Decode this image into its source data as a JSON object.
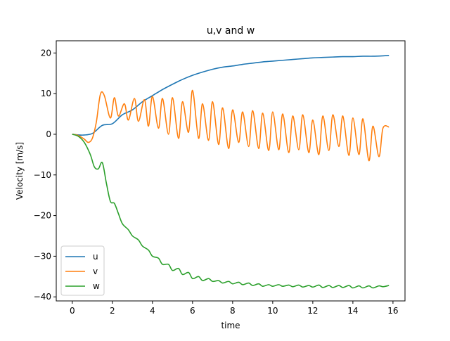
{
  "chart_data": {
    "type": "line",
    "title": "u,v and w",
    "xlabel": "time",
    "ylabel": "Velocity [m/s]",
    "xlim": [
      -0.8,
      16.6
    ],
    "ylim": [
      -41,
      23
    ],
    "xticks": [
      0,
      2,
      4,
      6,
      8,
      10,
      12,
      14,
      16
    ],
    "xtick_labels": [
      "0",
      "2",
      "4",
      "6",
      "8",
      "10",
      "12",
      "14",
      "16"
    ],
    "yticks": [
      -40,
      -30,
      -20,
      -10,
      0,
      10,
      20
    ],
    "ytick_labels": [
      "−40",
      "−30",
      "−20",
      "−10",
      "0",
      "10",
      "20"
    ],
    "grid": false,
    "legend_position": "lower-left",
    "series": [
      {
        "name": "u",
        "color": "#1f77b4",
        "x": [
          0,
          0.5,
          1.0,
          1.5,
          2.0,
          2.5,
          3.0,
          3.5,
          4.0,
          4.5,
          5.0,
          5.5,
          6.0,
          6.5,
          7.0,
          7.5,
          8.0,
          8.5,
          9.0,
          9.5,
          10.0,
          10.5,
          11.0,
          11.5,
          12.0,
          12.5,
          13.0,
          13.5,
          14.0,
          14.5,
          15.0,
          15.5,
          15.8
        ],
        "y": [
          0,
          -0.2,
          0.2,
          2.2,
          2.6,
          4.8,
          6.0,
          8.0,
          9.5,
          11.0,
          12.3,
          13.5,
          14.5,
          15.3,
          16.0,
          16.5,
          16.8,
          17.2,
          17.5,
          17.8,
          18.0,
          18.2,
          18.4,
          18.6,
          18.8,
          18.9,
          19.0,
          19.1,
          19.1,
          19.2,
          19.2,
          19.3,
          19.4
        ]
      },
      {
        "name": "v",
        "color": "#ff7f0e",
        "x": [
          0,
          0.3,
          0.6,
          0.8,
          1.0,
          1.2,
          1.4,
          1.6,
          1.9,
          2.1,
          2.3,
          2.6,
          2.8,
          3.1,
          3.3,
          3.6,
          3.8,
          4.0,
          4.3,
          4.5,
          4.8,
          5.0,
          5.3,
          5.5,
          5.8,
          6.0,
          6.3,
          6.5,
          6.8,
          7.0,
          7.3,
          7.5,
          7.8,
          8.0,
          8.3,
          8.5,
          8.8,
          9.0,
          9.3,
          9.5,
          9.8,
          10.0,
          10.3,
          10.5,
          10.8,
          11.0,
          11.3,
          11.5,
          11.8,
          12.0,
          12.3,
          12.5,
          12.8,
          13.0,
          13.3,
          13.5,
          13.8,
          14.0,
          14.3,
          14.5,
          14.8,
          15.0,
          15.3,
          15.5,
          15.8
        ],
        "y": [
          0,
          -0.3,
          -1.2,
          -2.0,
          -1.0,
          3.0,
          9.8,
          9.5,
          4.0,
          9.0,
          4.5,
          7.5,
          3.5,
          8.8,
          3.2,
          8.5,
          2.0,
          9.3,
          1.5,
          8.8,
          0.0,
          9.0,
          -1.0,
          8.0,
          0.5,
          10.8,
          -1.0,
          7.5,
          -1.5,
          8.0,
          -2.5,
          6.5,
          -3.5,
          6.0,
          -2.0,
          5.5,
          -3.0,
          5.8,
          -3.5,
          5.2,
          -4.0,
          5.5,
          -3.8,
          5.0,
          -4.5,
          4.5,
          -3.8,
          4.8,
          -4.5,
          3.5,
          -5.0,
          4.5,
          -4.0,
          4.8,
          -3.0,
          4.5,
          -5.2,
          4.0,
          -5.0,
          3.8,
          -6.5,
          2.0,
          -5.5,
          1.5,
          1.8
        ]
      },
      {
        "name": "w",
        "color": "#2ca02c",
        "x": [
          0,
          0.3,
          0.6,
          0.9,
          1.1,
          1.3,
          1.5,
          1.7,
          1.9,
          2.1,
          2.3,
          2.5,
          2.8,
          3.0,
          3.3,
          3.5,
          3.8,
          4.0,
          4.3,
          4.5,
          4.8,
          5.0,
          5.3,
          5.5,
          5.8,
          6.0,
          6.3,
          6.5,
          6.8,
          7.0,
          7.3,
          7.5,
          7.8,
          8.0,
          8.3,
          8.5,
          8.8,
          9.0,
          9.3,
          9.5,
          9.8,
          10.0,
          10.3,
          10.5,
          10.8,
          11.0,
          11.3,
          11.5,
          11.8,
          12.0,
          12.3,
          12.5,
          12.8,
          13.0,
          13.3,
          13.5,
          13.8,
          14.0,
          14.3,
          14.5,
          14.8,
          15.0,
          15.3,
          15.5,
          15.8
        ],
        "y": [
          0,
          -0.5,
          -2.0,
          -5.0,
          -8.0,
          -8.5,
          -7.0,
          -12.0,
          -16.5,
          -17.0,
          -19.5,
          -22.0,
          -23.5,
          -25.0,
          -26.0,
          -27.5,
          -28.5,
          -30.0,
          -30.5,
          -32.0,
          -32.0,
          -33.5,
          -33.0,
          -34.5,
          -34.0,
          -35.5,
          -35.0,
          -36.0,
          -35.5,
          -36.2,
          -36.0,
          -36.6,
          -36.2,
          -36.8,
          -36.4,
          -37.0,
          -36.6,
          -37.2,
          -36.8,
          -37.4,
          -37.0,
          -37.4,
          -37.0,
          -37.4,
          -37.1,
          -37.5,
          -37.1,
          -37.6,
          -37.2,
          -37.6,
          -37.1,
          -37.7,
          -37.2,
          -37.7,
          -37.2,
          -37.7,
          -37.2,
          -37.8,
          -37.3,
          -37.8,
          -37.3,
          -37.8,
          -37.3,
          -37.5,
          -37.2
        ]
      }
    ]
  }
}
